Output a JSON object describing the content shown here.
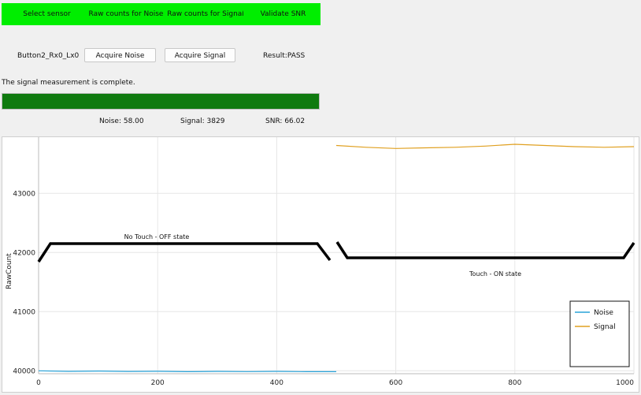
{
  "steps": [
    "Select sensor",
    "Raw counts for Noise",
    "Raw counts for Signal",
    "Validate SNR"
  ],
  "sensor_name": "Button2_Rx0_Lx0",
  "buttons": {
    "acquire_noise": "Acquire Noise",
    "acquire_signal": "Acquire Signal"
  },
  "result": "Result:PASS",
  "status_message": "The signal measurement is complete.",
  "progress": 1.0,
  "metrics": {
    "noise": "Noise:  58.00",
    "signal": "Signal:  3829",
    "snr": "SNR:  66.02"
  },
  "colors": {
    "step_bg": "#00ee00",
    "progress_fill": "#0f7a0f",
    "noise": "#29a3d9",
    "signal": "#e0a020"
  },
  "chart_data": {
    "type": "line",
    "ylabel": "RawCount",
    "xlim": [
      0,
      1000
    ],
    "ylim": [
      39950,
      43950
    ],
    "x_ticks": [
      0,
      200,
      400,
      600,
      800,
      1000
    ],
    "y_ticks": [
      40000,
      41000,
      42000,
      43000
    ],
    "series": [
      {
        "name": "Noise",
        "x": [
          0,
          50,
          100,
          150,
          200,
          250,
          300,
          350,
          400,
          450,
          500
        ],
        "values": [
          40000,
          39990,
          39995,
          39988,
          39992,
          39985,
          39990,
          39986,
          39990,
          39984,
          39985
        ]
      },
      {
        "name": "Signal",
        "x": [
          500,
          550,
          600,
          650,
          700,
          750,
          800,
          850,
          900,
          950,
          1000
        ],
        "values": [
          43810,
          43780,
          43760,
          43770,
          43780,
          43800,
          43830,
          43810,
          43790,
          43780,
          43790
        ]
      }
    ],
    "annotations": [
      "No Touch - OFF state",
      "Touch - ON state"
    ],
    "legend": [
      "Noise",
      "Signal"
    ],
    "legend_position": "bottom-right",
    "grid": true
  }
}
